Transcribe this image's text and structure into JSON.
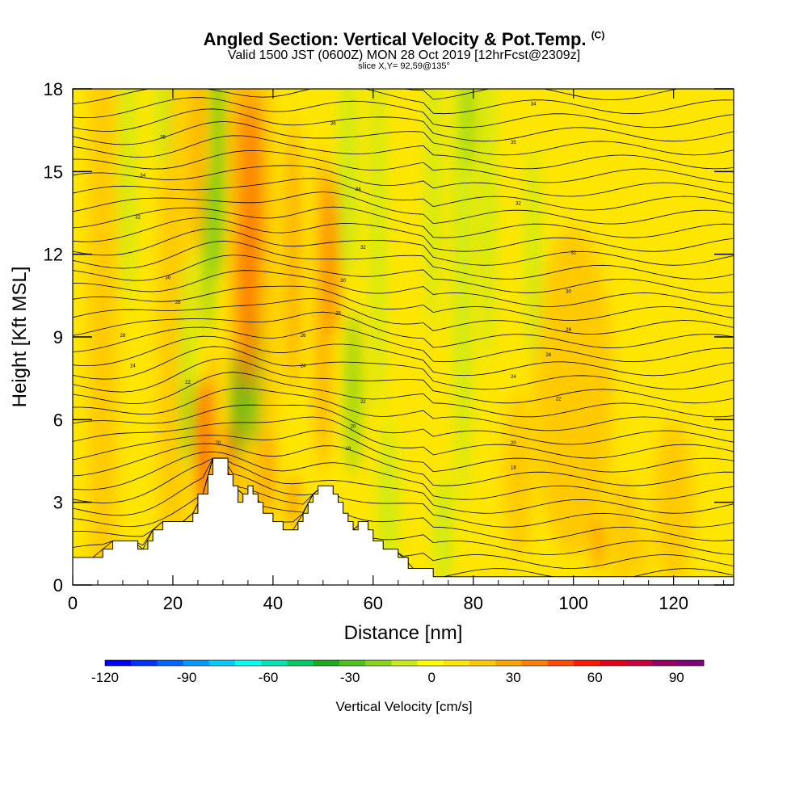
{
  "title": "Angled Section: Vertical Velocity & Pot.Temp.",
  "title_suffix": "(C)",
  "subtitle": "Valid 1500 JST (0600Z) MON 28 Oct 2019 [12hrFcst@2309z]",
  "slice_label": "slice X,Y= 92,59@135°",
  "chart_data": {
    "type": "heatmap",
    "title": "Angled Section: Vertical Velocity & Pot.Temp.",
    "xlabel": "Distance [nm]",
    "ylabel": "Height [Kft MSL]",
    "xlim": [
      0,
      132
    ],
    "ylim": [
      0,
      18
    ],
    "x_ticks": [
      0,
      20,
      40,
      60,
      80,
      100,
      120
    ],
    "y_ticks": [
      0,
      3,
      6,
      9,
      12,
      15,
      18
    ],
    "colorbar": {
      "label": "Vertical Velocity [cm/s]",
      "range": [
        -120,
        100
      ],
      "step": 10,
      "tick_values": [
        -120,
        -90,
        -60,
        -30,
        0,
        30,
        60,
        90
      ],
      "colors": [
        "#0000ff",
        "#0033ff",
        "#0066ff",
        "#0099ff",
        "#00ccff",
        "#00ffee",
        "#00e6b3",
        "#00cc66",
        "#1aaa1a",
        "#4cc21a",
        "#88d41a",
        "#c8ec1a",
        "#ffff00",
        "#ffe600",
        "#ffc800",
        "#ffa500",
        "#ff7f00",
        "#ff4c00",
        "#ff1a00",
        "#e6001a",
        "#cc0040",
        "#990066",
        "#800080"
      ]
    },
    "terrain_profile": [
      [
        0,
        1
      ],
      [
        6,
        1
      ],
      [
        6,
        1.3
      ],
      [
        8,
        1.3
      ],
      [
        8,
        1.6
      ],
      [
        13,
        1.6
      ],
      [
        13,
        1.3
      ],
      [
        15,
        1.3
      ],
      [
        15,
        1.6
      ],
      [
        16,
        1.6
      ],
      [
        16,
        2
      ],
      [
        18,
        2
      ],
      [
        18,
        2.3
      ],
      [
        24,
        2.3
      ],
      [
        24,
        2.6
      ],
      [
        25,
        2.6
      ],
      [
        25,
        3.3
      ],
      [
        27,
        3.3
      ],
      [
        27,
        4
      ],
      [
        28,
        4
      ],
      [
        28,
        4.6
      ],
      [
        31,
        4.6
      ],
      [
        31,
        4
      ],
      [
        32,
        4
      ],
      [
        32,
        3.6
      ],
      [
        33,
        3.6
      ],
      [
        33,
        3
      ],
      [
        34,
        3
      ],
      [
        34,
        3.3
      ],
      [
        35,
        3.3
      ],
      [
        35,
        3.6
      ],
      [
        36,
        3.6
      ],
      [
        36,
        3.3
      ],
      [
        37,
        3.3
      ],
      [
        37,
        3
      ],
      [
        38,
        3
      ],
      [
        38,
        2.6
      ],
      [
        40,
        2.6
      ],
      [
        40,
        2.3
      ],
      [
        42,
        2.3
      ],
      [
        42,
        2
      ],
      [
        45,
        2
      ],
      [
        45,
        2.3
      ],
      [
        46,
        2.3
      ],
      [
        46,
        2.6
      ],
      [
        47,
        2.6
      ],
      [
        47,
        3
      ],
      [
        48,
        3
      ],
      [
        48,
        3.3
      ],
      [
        49,
        3.3
      ],
      [
        49,
        3.6
      ],
      [
        52,
        3.6
      ],
      [
        52,
        3.3
      ],
      [
        53,
        3.3
      ],
      [
        53,
        3
      ],
      [
        54,
        3
      ],
      [
        54,
        2.6
      ],
      [
        55,
        2.6
      ],
      [
        55,
        2.3
      ],
      [
        56,
        2.3
      ],
      [
        56,
        2
      ],
      [
        57,
        2
      ],
      [
        57,
        2.3
      ],
      [
        59,
        2.3
      ],
      [
        59,
        2
      ],
      [
        60,
        2
      ],
      [
        60,
        1.6
      ],
      [
        62,
        1.6
      ],
      [
        62,
        1.3
      ],
      [
        65,
        1.3
      ],
      [
        65,
        1
      ],
      [
        67,
        1
      ],
      [
        67,
        0.6
      ],
      [
        72,
        0.6
      ],
      [
        72,
        0.3
      ],
      [
        132,
        0.3
      ]
    ],
    "contour_labels": [
      {
        "x": 92,
        "y": 17.4,
        "text": "34"
      },
      {
        "x": 52,
        "y": 16.7,
        "text": "36"
      },
      {
        "x": 88,
        "y": 16.0,
        "text": "35"
      },
      {
        "x": 18,
        "y": 16.2,
        "text": "35"
      },
      {
        "x": 14,
        "y": 14.8,
        "text": "34"
      },
      {
        "x": 57,
        "y": 14.3,
        "text": "34"
      },
      {
        "x": 89,
        "y": 13.8,
        "text": "32"
      },
      {
        "x": 13,
        "y": 13.3,
        "text": "32"
      },
      {
        "x": 58,
        "y": 12.2,
        "text": "32"
      },
      {
        "x": 100,
        "y": 12.0,
        "text": "32"
      },
      {
        "x": 19,
        "y": 11.1,
        "text": "30"
      },
      {
        "x": 54,
        "y": 11.0,
        "text": "30"
      },
      {
        "x": 99,
        "y": 10.6,
        "text": "30"
      },
      {
        "x": 21,
        "y": 10.2,
        "text": "28"
      },
      {
        "x": 53,
        "y": 9.8,
        "text": "28"
      },
      {
        "x": 10,
        "y": 9.0,
        "text": "28"
      },
      {
        "x": 46,
        "y": 9.0,
        "text": "26"
      },
      {
        "x": 99,
        "y": 9.2,
        "text": "28"
      },
      {
        "x": 12,
        "y": 7.9,
        "text": "24"
      },
      {
        "x": 46,
        "y": 7.9,
        "text": "24"
      },
      {
        "x": 95,
        "y": 8.3,
        "text": "26"
      },
      {
        "x": 23,
        "y": 7.3,
        "text": "22"
      },
      {
        "x": 88,
        "y": 7.5,
        "text": "24"
      },
      {
        "x": 58,
        "y": 6.6,
        "text": "22"
      },
      {
        "x": 97,
        "y": 6.7,
        "text": "22"
      },
      {
        "x": 56,
        "y": 5.7,
        "text": "20"
      },
      {
        "x": 29,
        "y": 5.1,
        "text": "20"
      },
      {
        "x": 88,
        "y": 5.1,
        "text": "20"
      },
      {
        "x": 55,
        "y": 4.9,
        "text": "18"
      },
      {
        "x": 88,
        "y": 4.2,
        "text": "18"
      }
    ],
    "isentrope_count": 36
  }
}
